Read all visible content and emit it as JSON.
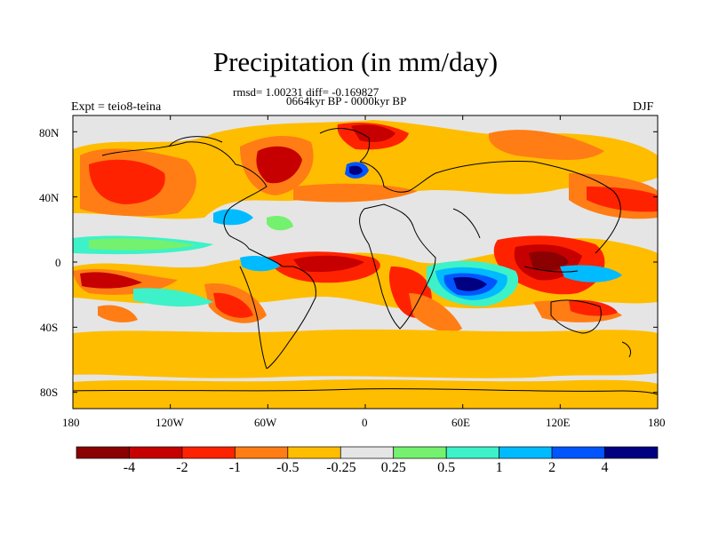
{
  "title": "Precipitation (in mm/day)",
  "stats_line": "rmsd= 1.00231 diff= -0.169827",
  "period_line": "0664kyr BP - 0000kyr BP",
  "left_label": "Expt = teio8-teina",
  "right_label": "DJF",
  "lat_ticks": [
    "80N",
    "40N",
    "0",
    "40S",
    "80S"
  ],
  "lon_ticks": [
    "180",
    "120W",
    "60W",
    "0",
    "60E",
    "120E",
    "180"
  ],
  "colorbar": {
    "colors": [
      "#8b0000",
      "#c60000",
      "#ff2200",
      "#ff7d14",
      "#ffbd00",
      "#e5e5e5",
      "#74f16e",
      "#3df2c8",
      "#00bbff",
      "#0055ff",
      "#000080"
    ],
    "labels": [
      "-4",
      "-2",
      "-1",
      "-0.5",
      "-0.25",
      "0.25",
      "0.5",
      "1",
      "2",
      "4"
    ]
  }
}
